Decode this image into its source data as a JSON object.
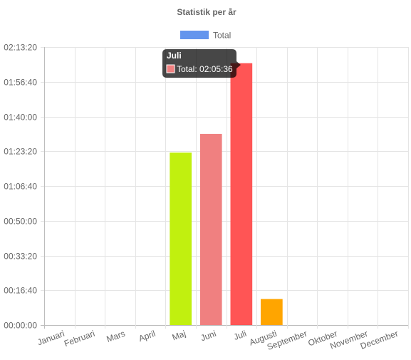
{
  "chart_data": {
    "type": "bar",
    "title": "Statistik per år",
    "legend": {
      "label": "Total",
      "color": "#6495ED",
      "placement": "top"
    },
    "categories": [
      "Januari",
      "Februari",
      "Mars",
      "April",
      "Maj",
      "Juni",
      "Juli",
      "Augusti",
      "September",
      "Oktober",
      "November",
      "December"
    ],
    "series": [
      {
        "name": "Total",
        "values": [
          0,
          0,
          0,
          0,
          4965,
          5500,
          7536,
          750,
          0,
          0,
          0,
          0
        ],
        "colors": [
          "#6495ED",
          "#6495ED",
          "#6495ED",
          "#6495ED",
          "#C1F00F",
          "#F08080",
          "#FF5555",
          "#FFA500",
          "#6495ED",
          "#6495ED",
          "#6495ED",
          "#6495ED"
        ]
      }
    ],
    "y_unit": "seconds",
    "ylim": [
      0,
      8000
    ],
    "y_ticks": [
      0,
      1000,
      2000,
      3000,
      4000,
      5000,
      6000,
      7000,
      8000
    ],
    "y_tick_labels": [
      "00:00:00",
      "00:16:40",
      "00:33:20",
      "00:50:00",
      "01:06:40",
      "01:23:20",
      "01:40:00",
      "01:56:40",
      "02:13:20"
    ],
    "grid": true,
    "tooltip": {
      "title": "Juli",
      "label": "Total: 02:05:36",
      "color": "#F08080"
    }
  }
}
